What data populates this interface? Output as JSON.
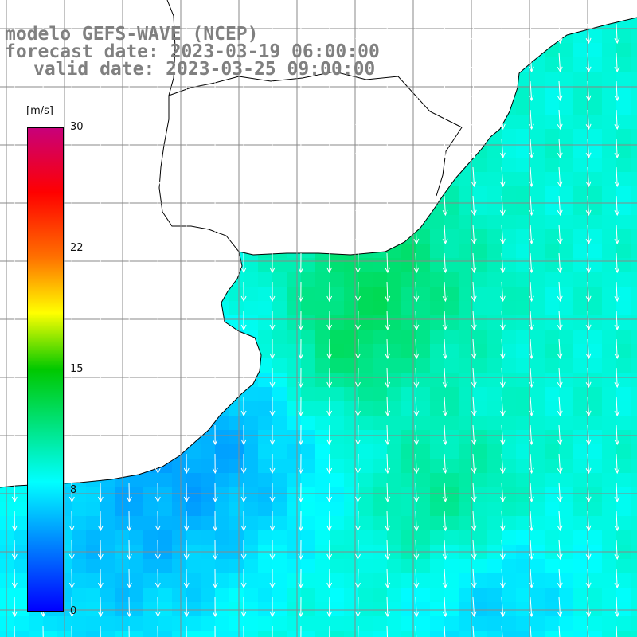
{
  "header": {
    "line1": "modelo GEFS-WAVE (NCEP)",
    "line2": "forecast date: 2023-03-19 06:00:00",
    "line3": "valid date: 2023-03-25 09:00:00"
  },
  "colorbar": {
    "unit": "[m/s]",
    "ticks": [
      {
        "label": "30",
        "value": 30
      },
      {
        "label": "22",
        "value": 22
      },
      {
        "label": "15",
        "value": 15
      },
      {
        "label": "8",
        "value": 8
      },
      {
        "label": "0",
        "value": 0
      }
    ],
    "min": 0,
    "max": 30,
    "stops": [
      {
        "value": 0,
        "color": "#0000ff"
      },
      {
        "value": 8,
        "color": "#00ffff"
      },
      {
        "value": 15,
        "color": "#00c800"
      },
      {
        "value": 18.5,
        "color": "#ffff00"
      },
      {
        "value": 22,
        "color": "#ff7000"
      },
      {
        "value": 26,
        "color": "#ff0000"
      },
      {
        "value": 30,
        "color": "#c8007a"
      }
    ]
  },
  "map": {
    "variable": "wind speed",
    "wind_direction": "southward (from north)",
    "land_color": "#ffffff",
    "grid_color": "#888888",
    "arrow_color": "#ffffff"
  }
}
